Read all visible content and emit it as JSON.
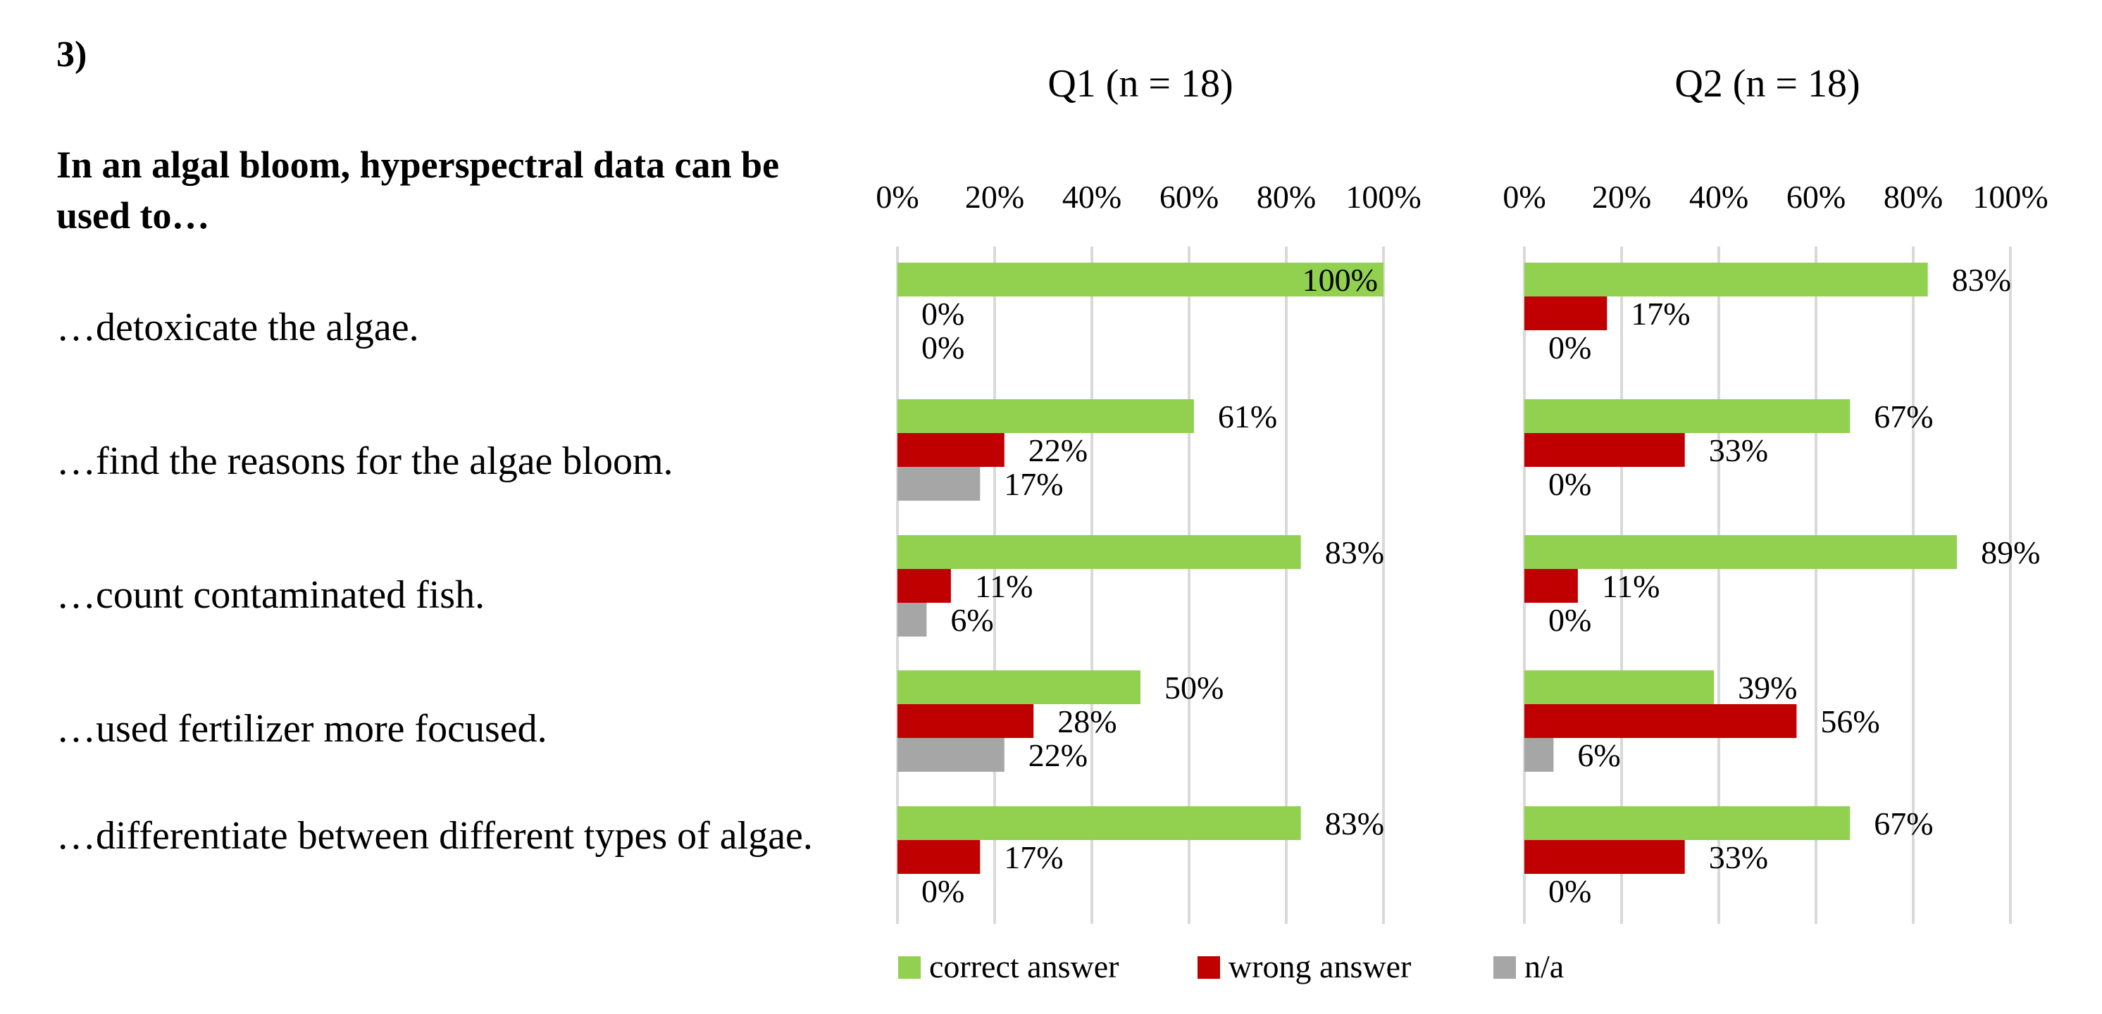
{
  "question_number": "3)",
  "stem": "In an algal bloom, hyperspectral data can be used to…",
  "chart_data": {
    "type": "bar",
    "orientation": "horizontal",
    "categories": [
      "…detoxicate the algae.",
      "…find the reasons for the algae bloom.",
      "…count contaminated fish.",
      "…used fertilizer more focused.",
      "…differentiate between different types of algae."
    ],
    "xlim": [
      0,
      100
    ],
    "tick_labels": [
      "0%",
      "20%",
      "40%",
      "60%",
      "80%",
      "100%"
    ],
    "grid": true,
    "legend": {
      "position": "bottom",
      "items": [
        {
          "name": "correct answer",
          "color": "#92d050"
        },
        {
          "name": "wrong answer",
          "color": "#c00000"
        },
        {
          "name": "n/a",
          "color": "#a6a6a6"
        }
      ]
    },
    "panels": [
      {
        "title": "Q1 (n = 18)",
        "series": [
          {
            "name": "correct answer",
            "values": [
              100,
              61,
              83,
              50,
              83
            ]
          },
          {
            "name": "wrong answer",
            "values": [
              0,
              22,
              11,
              28,
              17
            ]
          },
          {
            "name": "n/a",
            "values": [
              0,
              17,
              6,
              22,
              0
            ]
          }
        ]
      },
      {
        "title": "Q2 (n = 18)",
        "series": [
          {
            "name": "correct answer",
            "values": [
              83,
              67,
              89,
              39,
              67
            ]
          },
          {
            "name": "wrong answer",
            "values": [
              17,
              33,
              11,
              56,
              33
            ]
          },
          {
            "name": "n/a",
            "values": [
              0,
              0,
              0,
              6,
              0
            ]
          }
        ]
      }
    ]
  }
}
